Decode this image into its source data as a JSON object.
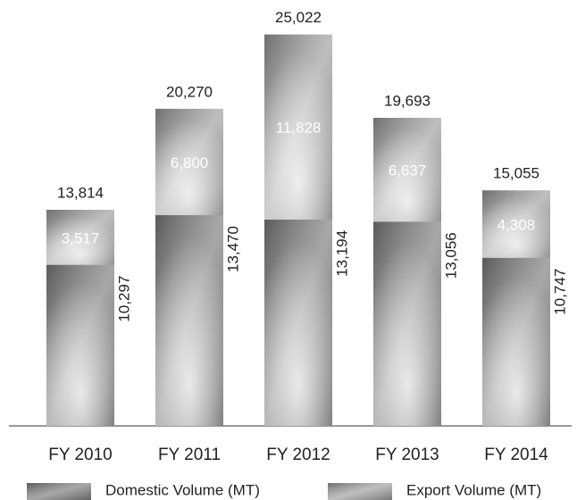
{
  "chart_data": {
    "type": "stacked-bar",
    "categories": [
      "FY 2010",
      "FY 2011",
      "FY 2012",
      "FY 2013",
      "FY 2014"
    ],
    "series": [
      {
        "name": "Domestic Volume (MT)",
        "color": "#8a8a8a",
        "values": [
          10297,
          13470,
          13194,
          13056,
          10747
        ],
        "value_labels": [
          "10,297",
          "13,470",
          "13,194",
          "13,056",
          "10,747"
        ]
      },
      {
        "name": "Export Volume (MT)",
        "color": "#a9a9a9",
        "values": [
          3517,
          6800,
          11828,
          6637,
          4308
        ],
        "value_labels": [
          "3,517",
          "6,800",
          "11,828",
          "6,637",
          "4,308"
        ]
      }
    ],
    "totals": [
      {
        "value": 13814,
        "label": "13,814"
      },
      {
        "value": 20270,
        "label": "20,270"
      },
      {
        "value": 25022,
        "label": "25,022"
      },
      {
        "value": 19693,
        "label": "19,693"
      },
      {
        "value": 15055,
        "label": "15,055"
      }
    ],
    "ylim": [
      0,
      25000
    ]
  }
}
